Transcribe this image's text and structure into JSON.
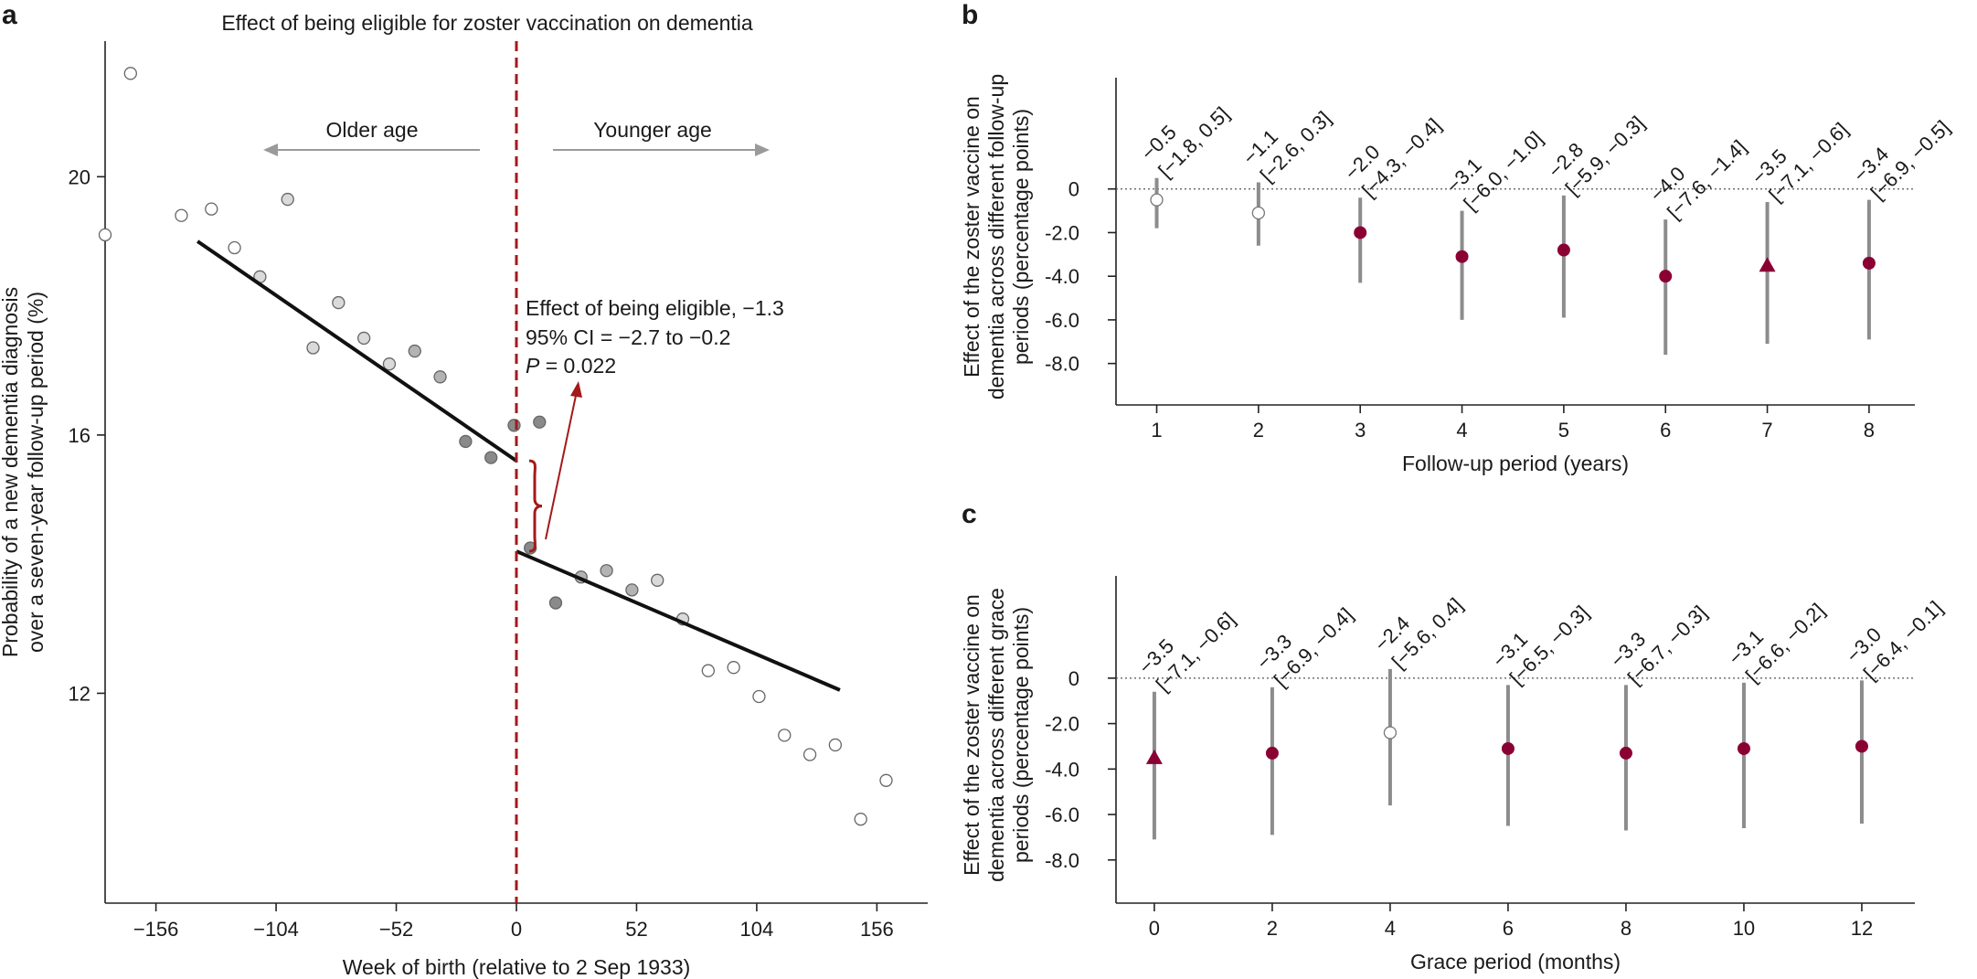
{
  "panels": {
    "a": "a",
    "b": "b",
    "c": "c"
  },
  "colors": {
    "crimson": "#8b0033",
    "threshold": "#a31a1a",
    "gray_marker": "#8c8c8c",
    "ci_gray": "#8c8c8c",
    "arrow_gray": "#9a9a9a",
    "fit_line": "#111111"
  },
  "chart_data": [
    {
      "id": "a",
      "type": "scatter",
      "title": "Effect of being eligible for zoster vaccination on dementia",
      "xlabel": "Week of birth (relative to 2 Sep 1933)",
      "ylabel": "Probability of a new dementia diagnosis over a seven-year follow-up period (%)",
      "ylabel_lines": [
        "Probability of a new dementia diagnosis",
        "over a seven-year follow-up period (%)"
      ],
      "xlim": [
        -178,
        178
      ],
      "ylim": [
        8.75,
        22.1
      ],
      "xticks": [
        -156,
        -104,
        -52,
        0,
        52,
        104,
        156
      ],
      "xtick_labels": [
        "−156",
        "−104",
        "−52",
        "0",
        "52",
        "104",
        "156"
      ],
      "yticks": [
        12,
        16,
        20
      ],
      "ytick_labels": [
        "12",
        "16",
        "20"
      ],
      "threshold_x": 0,
      "direction_labels": {
        "left": "Older age",
        "right": "Younger age"
      },
      "annotation": {
        "line1": "Effect of being eligible, −1.3",
        "line2": "95% CI = −2.7 to −0.2",
        "p_symbol": "P",
        "p_rest": " = 0.022"
      },
      "points": [
        {
          "x": -178,
          "y": 19.1,
          "shade": "white"
        },
        {
          "x": -167,
          "y": 21.6,
          "shade": "white"
        },
        {
          "x": -145,
          "y": 19.4,
          "shade": "white"
        },
        {
          "x": -132,
          "y": 19.5,
          "shade": "white"
        },
        {
          "x": -122,
          "y": 18.9,
          "shade": "white"
        },
        {
          "x": -111,
          "y": 18.45,
          "shade": "light"
        },
        {
          "x": -99,
          "y": 19.65,
          "shade": "light"
        },
        {
          "x": -88,
          "y": 17.35,
          "shade": "light"
        },
        {
          "x": -77,
          "y": 18.05,
          "shade": "light"
        },
        {
          "x": -66,
          "y": 17.5,
          "shade": "light"
        },
        {
          "x": -55,
          "y": 17.1,
          "shade": "light"
        },
        {
          "x": -44,
          "y": 17.3,
          "shade": "mid"
        },
        {
          "x": -33,
          "y": 16.9,
          "shade": "mid"
        },
        {
          "x": -22,
          "y": 15.9,
          "shade": "dark"
        },
        {
          "x": -11,
          "y": 15.65,
          "shade": "dark"
        },
        {
          "x": -1,
          "y": 16.15,
          "shade": "dark"
        },
        {
          "x": 10,
          "y": 16.2,
          "shade": "dark"
        },
        {
          "x": 6,
          "y": 14.25,
          "shade": "dark"
        },
        {
          "x": 17,
          "y": 13.4,
          "shade": "dark"
        },
        {
          "x": 28,
          "y": 13.8,
          "shade": "mid"
        },
        {
          "x": 39,
          "y": 13.9,
          "shade": "mid"
        },
        {
          "x": 50,
          "y": 13.6,
          "shade": "mid"
        },
        {
          "x": 61,
          "y": 13.75,
          "shade": "light"
        },
        {
          "x": 72,
          "y": 13.15,
          "shade": "light"
        },
        {
          "x": 83,
          "y": 12.35,
          "shade": "white"
        },
        {
          "x": 94,
          "y": 12.4,
          "shade": "white"
        },
        {
          "x": 105,
          "y": 11.95,
          "shade": "white"
        },
        {
          "x": 116,
          "y": 11.35,
          "shade": "white"
        },
        {
          "x": 127,
          "y": 11.05,
          "shade": "white"
        },
        {
          "x": 138,
          "y": 11.2,
          "shade": "white"
        },
        {
          "x": 149,
          "y": 10.05,
          "shade": "white"
        },
        {
          "x": 160,
          "y": 10.65,
          "shade": "white"
        }
      ],
      "fit_lines": [
        {
          "x": [
            -138,
            0
          ],
          "y": [
            19.0,
            15.6
          ]
        },
        {
          "x": [
            0,
            140
          ],
          "y": [
            14.2,
            12.05
          ]
        }
      ],
      "discontinuity": {
        "x": 0,
        "y_top": 15.6,
        "y_bottom": 14.2
      }
    },
    {
      "id": "b",
      "type": "scatter",
      "subtype": "point-range",
      "xlabel": "Follow-up period (years)",
      "ylabel_lines": [
        "Effect of the zoster vaccine on",
        "dementia across different follow-up",
        "periods (percentage points)"
      ],
      "xlim": [
        0.6,
        8.45
      ],
      "ylim": [
        -9.9,
        5.1
      ],
      "xticks": [
        1,
        2,
        3,
        4,
        5,
        6,
        7,
        8
      ],
      "xtick_labels": [
        "1",
        "2",
        "3",
        "4",
        "5",
        "6",
        "7",
        "8"
      ],
      "yticks": [
        0,
        -2,
        -4,
        -6,
        -8
      ],
      "ytick_labels": [
        "0",
        "-2.0",
        "-4.0",
        "-6.0",
        "-8.0"
      ],
      "points": [
        {
          "x": 1,
          "y": -0.5,
          "lo": -1.8,
          "hi": 0.5,
          "marker": "open",
          "label": "−0.5",
          "ci_label": "[−1.8, 0.5]"
        },
        {
          "x": 2,
          "y": -1.1,
          "lo": -2.6,
          "hi": 0.3,
          "marker": "open",
          "label": "−1.1",
          "ci_label": "[−2.6, 0.3]"
        },
        {
          "x": 3,
          "y": -2.0,
          "lo": -4.3,
          "hi": -0.4,
          "marker": "filled",
          "label": "−2.0",
          "ci_label": "[−4.3, −0.4]"
        },
        {
          "x": 4,
          "y": -3.1,
          "lo": -6.0,
          "hi": -1.0,
          "marker": "filled",
          "label": "−3.1",
          "ci_label": "[−6.0, −1.0]"
        },
        {
          "x": 5,
          "y": -2.8,
          "lo": -5.9,
          "hi": -0.3,
          "marker": "filled",
          "label": "−2.8",
          "ci_label": "[−5.9, −0.3]"
        },
        {
          "x": 6,
          "y": -4.0,
          "lo": -7.6,
          "hi": -1.4,
          "marker": "filled",
          "label": "−4.0",
          "ci_label": "[−7.6, −1.4]"
        },
        {
          "x": 7,
          "y": -3.5,
          "lo": -7.1,
          "hi": -0.6,
          "marker": "triangle",
          "label": "−3.5",
          "ci_label": "[−7.1, −0.6]"
        },
        {
          "x": 8,
          "y": -3.4,
          "lo": -6.9,
          "hi": -0.5,
          "marker": "filled",
          "label": "−3.4",
          "ci_label": "[−6.9, −0.5]"
        }
      ]
    },
    {
      "id": "c",
      "type": "scatter",
      "subtype": "point-range",
      "xlabel": "Grace period (months)",
      "ylabel_lines": [
        "Effect of the zoster vaccine on",
        "dementia across different grace",
        "periods (percentage points)"
      ],
      "xlim": [
        -0.65,
        12.9
      ],
      "ylim": [
        -9.9,
        4.5
      ],
      "xticks": [
        0,
        2,
        4,
        6,
        8,
        10,
        12
      ],
      "xtick_labels": [
        "0",
        "2",
        "4",
        "6",
        "8",
        "10",
        "12"
      ],
      "yticks": [
        0,
        -2,
        -4,
        -6,
        -8
      ],
      "ytick_labels": [
        "0",
        "-2.0",
        "-4.0",
        "-6.0",
        "-8.0"
      ],
      "points": [
        {
          "x": 0,
          "y": -3.5,
          "lo": -7.1,
          "hi": -0.6,
          "marker": "triangle",
          "label": "−3.5",
          "ci_label": "[−7.1, −0.6]"
        },
        {
          "x": 2,
          "y": -3.3,
          "lo": -6.9,
          "hi": -0.4,
          "marker": "filled",
          "label": "−3.3",
          "ci_label": "[−6.9, −0.4]"
        },
        {
          "x": 4,
          "y": -2.4,
          "lo": -5.6,
          "hi": 0.4,
          "marker": "open",
          "label": "−2.4",
          "ci_label": "[−5.6, 0.4]"
        },
        {
          "x": 6,
          "y": -3.1,
          "lo": -6.5,
          "hi": -0.3,
          "marker": "filled",
          "label": "−3.1",
          "ci_label": "[−6.5, −0.3]"
        },
        {
          "x": 8,
          "y": -3.3,
          "lo": -6.7,
          "hi": -0.3,
          "marker": "filled",
          "label": "−3.3",
          "ci_label": "[−6.7, −0.3]"
        },
        {
          "x": 10,
          "y": -3.1,
          "lo": -6.6,
          "hi": -0.2,
          "marker": "filled",
          "label": "−3.1",
          "ci_label": "[−6.6, −0.2]"
        },
        {
          "x": 12,
          "y": -3.0,
          "lo": -6.4,
          "hi": -0.1,
          "marker": "filled",
          "label": "−3.0",
          "ci_label": "[−6.4, −0.1]"
        }
      ]
    }
  ]
}
